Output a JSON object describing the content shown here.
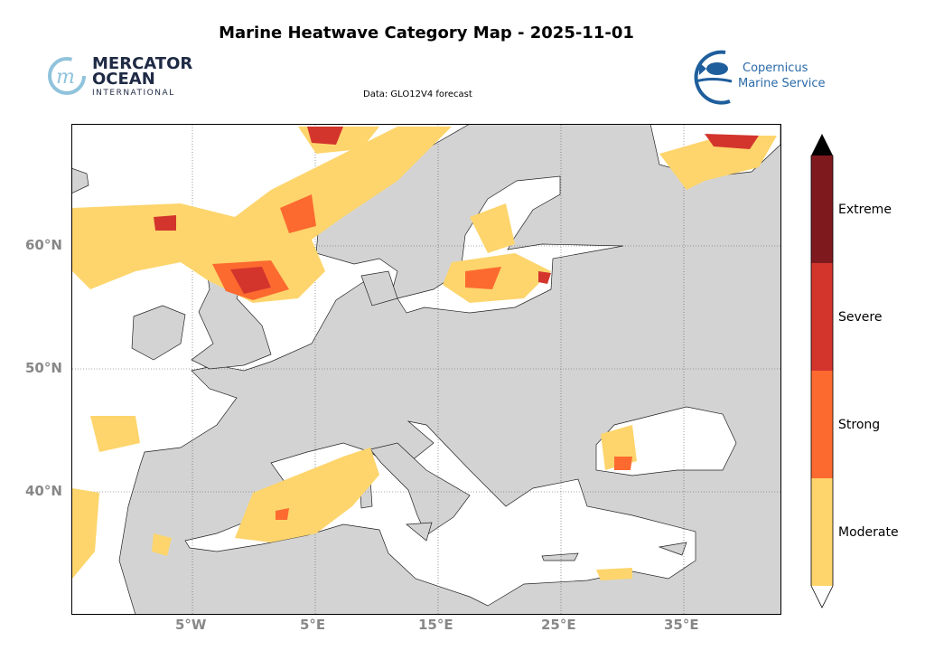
{
  "title": "Marine Heatwave Category Map - 2025-11-01",
  "subtitle": "Data: GLO12V4 forecast",
  "logos": {
    "mercator": {
      "line1": "MERCATOR",
      "line2": "OCEAN",
      "line3": "INTERNATIONAL"
    },
    "copernicus": {
      "line1": "Copernicus",
      "line2": "Marine Service"
    }
  },
  "axes": {
    "lat_labels": [
      "60°N",
      "50°N",
      "40°N"
    ],
    "lon_labels": [
      "5°W",
      "5°E",
      "15°E",
      "25°E",
      "35°E"
    ]
  },
  "legend": {
    "categories": [
      {
        "label": "Extreme",
        "color": "#7e1a1e"
      },
      {
        "label": "Severe",
        "color": "#d3352d"
      },
      {
        "label": "Strong",
        "color": "#fd6a30"
      },
      {
        "label": "Moderate",
        "color": "#fdd56c"
      }
    ]
  },
  "colors": {
    "land": "#d3d3d3",
    "sea": "#ffffff"
  }
}
